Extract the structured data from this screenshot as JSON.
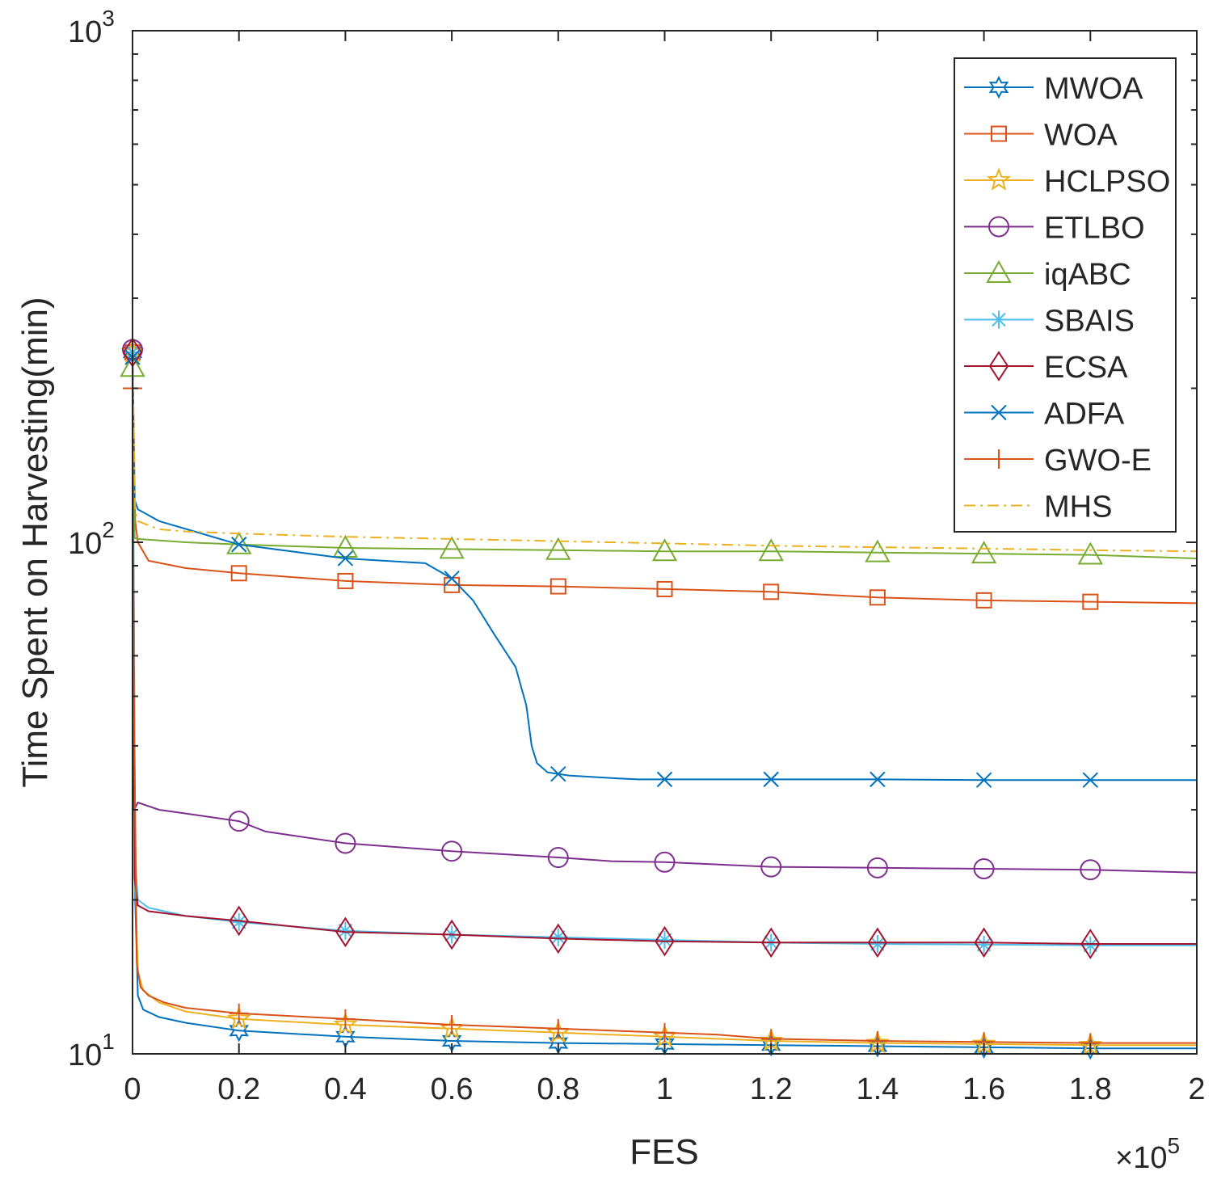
{
  "chart_data": {
    "type": "line",
    "title": "",
    "xlabel": "FES",
    "ylabel": "Time Spent on Harvesting(min)",
    "x_multiplier_label": "×10",
    "x_multiplier_exponent": "5",
    "xlim": [
      0,
      2
    ],
    "ylim": [
      10,
      1000
    ],
    "yscale": "log",
    "x_ticks": [
      0,
      0.2,
      0.4,
      0.6,
      0.8,
      1,
      1.2,
      1.4,
      1.6,
      1.8,
      2
    ],
    "x_tick_labels": [
      "0",
      "0.2",
      "0.4",
      "0.6",
      "0.8",
      "1",
      "1.2",
      "1.4",
      "1.6",
      "1.8",
      "2"
    ],
    "y_ticks": [
      {
        "value": 10,
        "base": "10",
        "exp": "1"
      },
      {
        "value": 100,
        "base": "10",
        "exp": "2"
      },
      {
        "value": 1000,
        "base": "10",
        "exp": "3"
      }
    ],
    "grid": false,
    "legend_position": "top-right",
    "series": [
      {
        "name": "MWOA",
        "color": "#0072BD",
        "marker": "hexagram",
        "dash": "solid",
        "x": [
          0,
          0.005,
          0.01,
          0.02,
          0.05,
          0.1,
          0.2,
          0.4,
          0.6,
          0.8,
          1,
          1.2,
          1.4,
          1.6,
          1.8,
          2
        ],
        "y": [
          235,
          20,
          13,
          12.2,
          11.8,
          11.5,
          11.1,
          10.8,
          10.6,
          10.5,
          10.45,
          10.4,
          10.35,
          10.3,
          10.25,
          10.25
        ],
        "marker_x": [
          0,
          0.2,
          0.4,
          0.6,
          0.8,
          1,
          1.2,
          1.4,
          1.6,
          1.8
        ]
      },
      {
        "name": "WOA",
        "color": "#D95319",
        "marker": "square",
        "dash": "solid",
        "x": [
          0,
          0.005,
          0.01,
          0.03,
          0.1,
          0.2,
          0.4,
          0.6,
          0.8,
          1,
          1.2,
          1.4,
          1.6,
          1.8,
          2
        ],
        "y": [
          235,
          110,
          100,
          92,
          89,
          87,
          84,
          82.5,
          82,
          81,
          80,
          78,
          77,
          76.5,
          76
        ],
        "marker_x": [
          0,
          0.2,
          0.4,
          0.6,
          0.8,
          1,
          1.2,
          1.4,
          1.6,
          1.8
        ]
      },
      {
        "name": "HCLPSO",
        "color": "#EDB120",
        "marker": "pentagram",
        "dash": "solid",
        "x": [
          0,
          0.005,
          0.01,
          0.02,
          0.05,
          0.1,
          0.2,
          0.4,
          0.6,
          0.8,
          1,
          1.2,
          1.4,
          1.6,
          1.8,
          2
        ],
        "y": [
          235,
          22,
          14.5,
          13.3,
          12.6,
          12.1,
          11.7,
          11.4,
          11.2,
          11,
          10.8,
          10.6,
          10.5,
          10.45,
          10.4,
          10.4
        ],
        "marker_x": [
          0,
          0.2,
          0.4,
          0.6,
          0.8,
          1,
          1.2,
          1.4,
          1.6,
          1.8
        ]
      },
      {
        "name": "ETLBO",
        "color": "#7E2F8E",
        "marker": "circle",
        "dash": "solid",
        "x": [
          0,
          0.003,
          0.01,
          0.05,
          0.1,
          0.2,
          0.25,
          0.4,
          0.6,
          0.8,
          0.9,
          1,
          1.2,
          1.4,
          1.6,
          1.8,
          2
        ],
        "y": [
          238,
          30,
          31,
          30,
          29.5,
          28.5,
          27.2,
          25.8,
          24.9,
          24.2,
          23.8,
          23.7,
          23.2,
          23.1,
          23,
          22.9,
          22.6
        ],
        "marker_x": [
          0,
          0.2,
          0.4,
          0.6,
          0.8,
          1,
          1.2,
          1.4,
          1.6,
          1.8
        ]
      },
      {
        "name": "iqABC",
        "color": "#77AC30",
        "marker": "triangle",
        "dash": "solid",
        "x": [
          0,
          0.004,
          0.01,
          0.1,
          0.2,
          0.4,
          0.6,
          0.8,
          1,
          1.2,
          1.4,
          1.6,
          1.8,
          2
        ],
        "y": [
          220,
          102,
          101.5,
          100,
          99,
          97.5,
          97,
          96.5,
          96,
          96,
          95.5,
          95,
          94.5,
          93
        ],
        "marker_x": [
          0,
          0.2,
          0.4,
          0.6,
          0.8,
          1,
          1.2,
          1.4,
          1.6,
          1.8
        ]
      },
      {
        "name": "SBAIS",
        "color": "#4DBEEE",
        "marker": "asterisk",
        "dash": "solid",
        "x": [
          0,
          0.005,
          0.01,
          0.03,
          0.1,
          0.2,
          0.4,
          0.6,
          0.8,
          1,
          1.2,
          1.4,
          1.6,
          1.8,
          2
        ],
        "y": [
          235,
          24,
          20,
          19.3,
          18.6,
          18.1,
          17.4,
          17.1,
          16.9,
          16.7,
          16.5,
          16.4,
          16.35,
          16.3,
          16.3
        ],
        "marker_x": [
          0,
          0.2,
          0.4,
          0.6,
          0.8,
          1,
          1.2,
          1.4,
          1.6,
          1.8
        ]
      },
      {
        "name": "ECSA",
        "color": "#A2142F",
        "marker": "diamond",
        "dash": "solid",
        "x": [
          0,
          0.004,
          0.01,
          0.03,
          0.1,
          0.2,
          0.4,
          0.6,
          0.8,
          1,
          1.2,
          1.4,
          1.6,
          1.8,
          2
        ],
        "y": [
          235,
          22,
          19.5,
          19,
          18.6,
          18.2,
          17.3,
          17.1,
          16.8,
          16.6,
          16.5,
          16.5,
          16.5,
          16.4,
          16.4
        ],
        "marker_x": [
          0,
          0.2,
          0.4,
          0.6,
          0.8,
          1,
          1.2,
          1.4,
          1.6,
          1.8
        ]
      },
      {
        "name": "ADFA",
        "color": "#0072BD",
        "marker": "x",
        "dash": "solid",
        "x": [
          0,
          0.003,
          0.01,
          0.05,
          0.2,
          0.4,
          0.55,
          0.6,
          0.64,
          0.68,
          0.72,
          0.74,
          0.75,
          0.76,
          0.78,
          0.82,
          0.9,
          0.95,
          1,
          1.2,
          1.4,
          1.6,
          1.8,
          2
        ],
        "y": [
          230,
          122,
          116,
          110,
          99,
          93,
          91,
          85,
          77,
          66,
          57,
          48,
          40,
          37,
          35.5,
          35,
          34.6,
          34.4,
          34.4,
          34.4,
          34.4,
          34.3,
          34.3,
          34.3
        ],
        "marker_x": [
          0,
          0.2,
          0.4,
          0.6,
          0.8,
          1,
          1.2,
          1.4,
          1.6,
          1.8
        ]
      },
      {
        "name": "GWO-E",
        "color": "#D95319",
        "marker": "plus",
        "dash": "solid",
        "x": [
          0,
          0.003,
          0.008,
          0.015,
          0.03,
          0.06,
          0.1,
          0.2,
          0.4,
          0.6,
          0.8,
          1,
          1.1,
          1.2,
          1.4,
          1.6,
          1.8,
          2
        ],
        "y": [
          200,
          45,
          15,
          13.5,
          13,
          12.6,
          12.3,
          12,
          11.7,
          11.4,
          11.2,
          11,
          10.9,
          10.7,
          10.6,
          10.55,
          10.5,
          10.5
        ],
        "marker_x": [
          0,
          0.2,
          0.4,
          0.6,
          0.8,
          1,
          1.2,
          1.4,
          1.6,
          1.8
        ]
      },
      {
        "name": "MHS",
        "color": "#EDB120",
        "marker": "none",
        "dash": "dashdot",
        "x": [
          0,
          0.005,
          0.01,
          0.05,
          0.1,
          0.2,
          0.4,
          0.6,
          0.8,
          1,
          1.2,
          1.4,
          1.6,
          1.8,
          2
        ],
        "y": [
          230,
          115,
          110,
          106,
          105,
          104,
          102.5,
          101.5,
          100.5,
          99.5,
          98.5,
          97.8,
          97.2,
          96.5,
          96
        ],
        "marker_x": []
      }
    ]
  }
}
